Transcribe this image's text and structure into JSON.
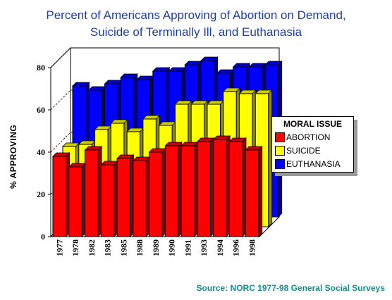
{
  "title_line1": "Percent of Americans Approving of Abortion on Demand,",
  "title_line2": "Suicide of Terminally Ill, and Euthanasia",
  "source": "Source: NORC 1977-98 General Social Surveys",
  "colors": {
    "title": "#1f3f9f",
    "source": "#0f8f8f",
    "abortion": "#ff0000",
    "suicide": "#ffff00",
    "euthanasia": "#0000ff"
  },
  "chart_data": {
    "type": "bar",
    "title": "Percent of Americans Approving of Abortion on Demand, Suicide of Terminally Ill, and Euthanasia",
    "ylabel": "% APPROVING",
    "xlabel": "",
    "ylim": [
      0,
      80
    ],
    "yticks": [
      0,
      20,
      40,
      60,
      80
    ],
    "grid": true,
    "legend_position": "right",
    "legend_title": "MORAL ISSUE",
    "categories": [
      "1977",
      "1978",
      "1982",
      "1983",
      "1985",
      "1988",
      "1989",
      "1990",
      "1991",
      "1993",
      "1994",
      "1996",
      "1998"
    ],
    "series": [
      {
        "name": "EUTHANASIA",
        "color": "#0000ff",
        "values": [
          62,
          60,
          63,
          66,
          65,
          69,
          69,
          72,
          74,
          68,
          71,
          71,
          72
        ]
      },
      {
        "name": "SUICIDE",
        "color": "#ffff00",
        "values": [
          38,
          39,
          46,
          49,
          45,
          51,
          48,
          58,
          58,
          58,
          64,
          63,
          63
        ]
      },
      {
        "name": "ABORTION",
        "color": "#ff0000",
        "values": [
          38,
          33,
          41,
          34,
          37,
          36,
          40,
          43,
          43,
          45,
          46,
          45,
          41
        ]
      }
    ]
  }
}
